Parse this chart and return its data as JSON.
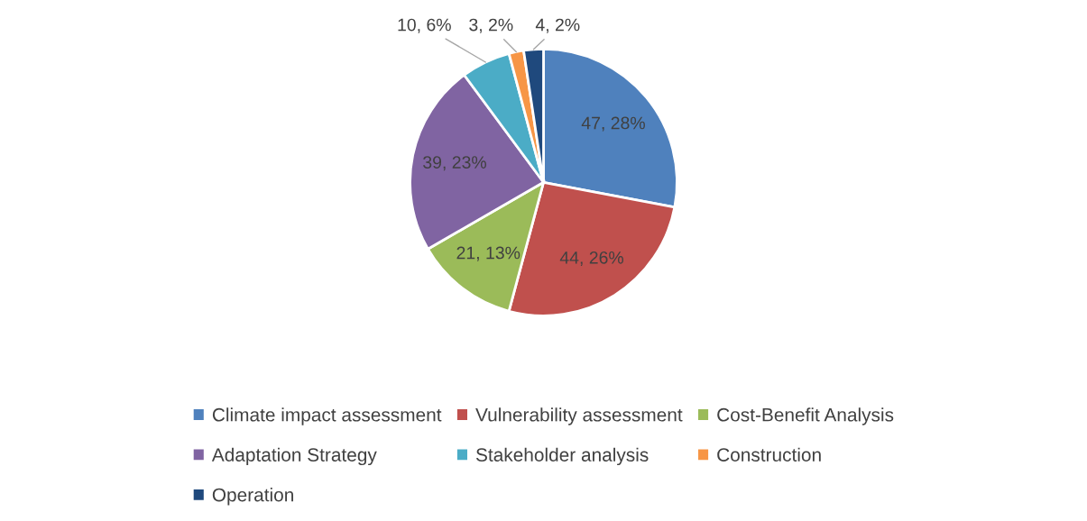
{
  "chart_data": {
    "type": "pie",
    "categories": [
      "Climate impact assessment",
      "Vulnerability assessment",
      "Cost-Benefit Analysis",
      "Adaptation Strategy",
      "Stakeholder analysis",
      "Construction",
      "Operation"
    ],
    "values": [
      47,
      44,
      21,
      39,
      10,
      3,
      4
    ],
    "colors": [
      "#4f81bd",
      "#c0504d",
      "#9bbb59",
      "#8064a2",
      "#4bacc6",
      "#f79646",
      "#1f497d"
    ],
    "value_labels": [
      "47, 28%",
      "44, 26%",
      "21, 13%",
      "39, 23%",
      "10, 6%",
      "3, 2%",
      "4, 2%"
    ],
    "legend": "bottom"
  }
}
